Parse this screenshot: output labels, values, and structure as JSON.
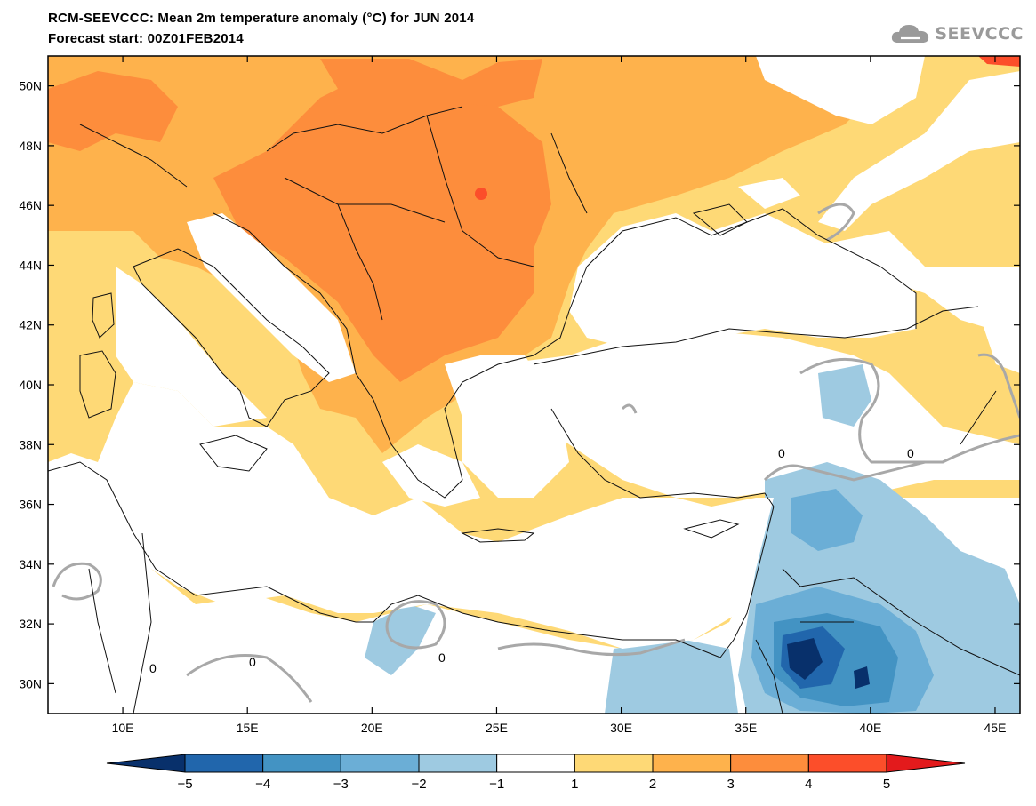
{
  "header": {
    "title_line1": "RCM-SEEVCCC: Mean 2m temperature anomaly (°C) for JUN 2014",
    "title_line2": "Forecast start: 00Z01FEB2014",
    "logo_text": "SEEVCCC"
  },
  "map": {
    "lon_range": [
      7,
      46
    ],
    "lat_range": [
      29,
      51
    ],
    "lon_ticks": [
      {
        "value": 10,
        "label": "10E"
      },
      {
        "value": 15,
        "label": "15E"
      },
      {
        "value": 20,
        "label": "20E"
      },
      {
        "value": 25,
        "label": "25E"
      },
      {
        "value": 30,
        "label": "30E"
      },
      {
        "value": 35,
        "label": "35E"
      },
      {
        "value": 40,
        "label": "40E"
      },
      {
        "value": 45,
        "label": "45E"
      }
    ],
    "lat_ticks": [
      {
        "value": 30,
        "label": "30N"
      },
      {
        "value": 32,
        "label": "32N"
      },
      {
        "value": 34,
        "label": "34N"
      },
      {
        "value": 36,
        "label": "36N"
      },
      {
        "value": 38,
        "label": "38N"
      },
      {
        "value": 40,
        "label": "40N"
      },
      {
        "value": 42,
        "label": "42N"
      },
      {
        "value": 44,
        "label": "44N"
      },
      {
        "value": 46,
        "label": "46N"
      },
      {
        "value": 48,
        "label": "48N"
      },
      {
        "value": 50,
        "label": "50N"
      }
    ],
    "contour_zero_labels": [
      "0",
      "0",
      "0",
      "0",
      "0"
    ]
  },
  "colorbar": {
    "boundaries": [
      "−5",
      "−4",
      "−3",
      "−2",
      "−1",
      "1",
      "2",
      "3",
      "4",
      "5"
    ],
    "colors": [
      "#08306b",
      "#2166ac",
      "#4393c3",
      "#6baed6",
      "#9ecae1",
      "#ffffff",
      "#fed976",
      "#feb24c",
      "#fd8d3c",
      "#fc4e2a",
      "#e31a1c"
    ]
  }
}
